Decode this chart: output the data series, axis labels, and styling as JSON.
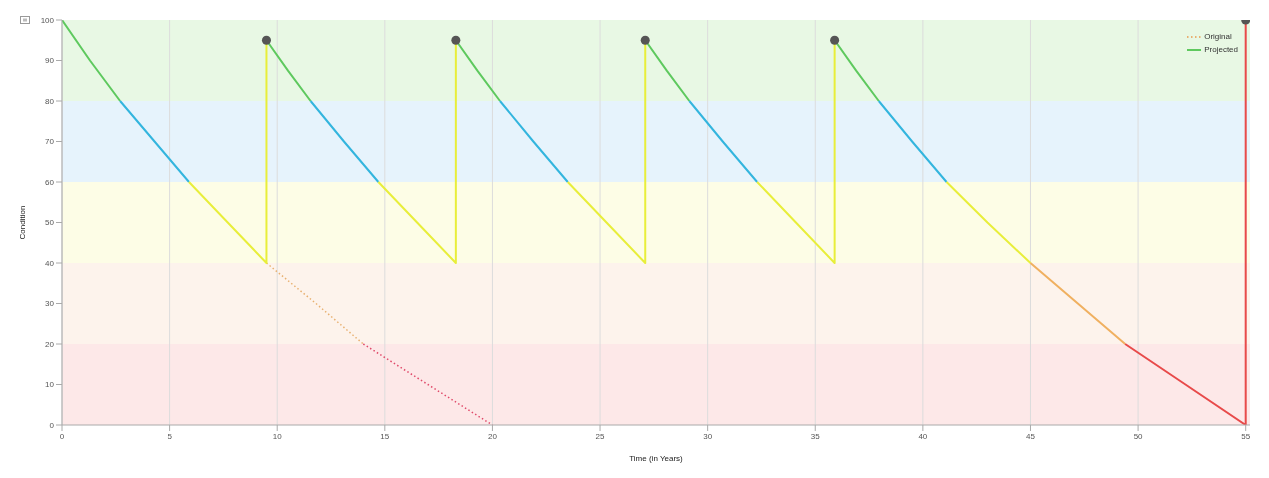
{
  "chart_data": {
    "type": "line",
    "xlabel": "Time (in Years)",
    "ylabel": "Condition",
    "xlim": [
      0,
      55.2
    ],
    "xticks": [
      0,
      5,
      10,
      15,
      20,
      25,
      30,
      35,
      40,
      45,
      50,
      55
    ],
    "ylim": [
      0,
      100
    ],
    "yticks": [
      0,
      10,
      20,
      30,
      40,
      50,
      60,
      70,
      80,
      90,
      100
    ],
    "grid": "x",
    "legend": "top right",
    "marker": "none",
    "bands": [
      {
        "axis": "y",
        "from": 80,
        "to": 100,
        "color": "#e8f8e4"
      },
      {
        "axis": "y",
        "from": 60,
        "to": 80,
        "color": "#e6f3fc"
      },
      {
        "axis": "y",
        "from": 40,
        "to": 60,
        "color": "#fdfde6"
      },
      {
        "axis": "y",
        "from": 20,
        "to": 40,
        "color": "#fdf3ec"
      },
      {
        "axis": "y",
        "from": 0,
        "to": 20,
        "color": "#fde8e8"
      }
    ],
    "series": [
      {
        "name": "Original",
        "color": "#e8b070",
        "line_style": "dotted",
        "x": [
          9.5,
          11.8,
          14.0
        ],
        "values": [
          40,
          30,
          20
        ]
      },
      {
        "color": "#e04a6a",
        "line_style": "dotted",
        "x": [
          14.0,
          17.0,
          20.0
        ],
        "values": [
          20,
          10,
          0
        ]
      },
      {
        "name": "Projected",
        "color": "#5ec95e",
        "line_style": "solid",
        "x": [
          0,
          1.3,
          2.7
        ],
        "values": [
          100,
          90,
          80
        ]
      },
      {
        "color": "#33b5de",
        "line_style": "solid",
        "x": [
          2.7,
          4.3,
          5.9
        ],
        "values": [
          80,
          70,
          60
        ]
      },
      {
        "color": "#e8ee3a",
        "line_style": "solid",
        "x": [
          5.9,
          7.7,
          9.5,
          9.5
        ],
        "values": [
          60,
          50,
          40,
          95
        ]
      },
      {
        "color": "#5ec95e",
        "line_style": "solid",
        "x": [
          9.5,
          10.5,
          11.55
        ],
        "values": [
          95,
          87.5,
          80
        ]
      },
      {
        "color": "#33b5de",
        "line_style": "solid",
        "x": [
          11.55,
          13.1,
          14.7
        ],
        "values": [
          80,
          70,
          60
        ]
      },
      {
        "color": "#e8ee3a",
        "line_style": "solid",
        "x": [
          14.7,
          16.5,
          18.3,
          18.3
        ],
        "values": [
          60,
          50,
          40,
          95
        ]
      },
      {
        "color": "#5ec95e",
        "line_style": "solid",
        "x": [
          18.3,
          19.3,
          20.35
        ],
        "values": [
          95,
          87.5,
          80
        ]
      },
      {
        "color": "#33b5de",
        "line_style": "solid",
        "x": [
          20.35,
          21.9,
          23.5
        ],
        "values": [
          80,
          70,
          60
        ]
      },
      {
        "color": "#e8ee3a",
        "line_style": "solid",
        "x": [
          23.5,
          25.3,
          27.1,
          27.1
        ],
        "values": [
          60,
          50,
          40,
          95
        ]
      },
      {
        "color": "#5ec95e",
        "line_style": "solid",
        "x": [
          27.1,
          28.1,
          29.15
        ],
        "values": [
          95,
          87.5,
          80
        ]
      },
      {
        "color": "#33b5de",
        "line_style": "solid",
        "x": [
          29.15,
          30.7,
          32.3
        ],
        "values": [
          80,
          70,
          60
        ]
      },
      {
        "color": "#e8ee3a",
        "line_style": "solid",
        "x": [
          32.3,
          34.1,
          35.9,
          35.9
        ],
        "values": [
          60,
          50,
          40,
          95
        ]
      },
      {
        "color": "#5ec95e",
        "line_style": "solid",
        "x": [
          35.9,
          36.9,
          37.95
        ],
        "values": [
          95,
          87.5,
          80
        ]
      },
      {
        "color": "#33b5de",
        "line_style": "solid",
        "x": [
          37.95,
          39.5,
          41.1
        ],
        "values": [
          80,
          70,
          60
        ]
      },
      {
        "color": "#e8ee3a",
        "line_style": "solid",
        "x": [
          41.1,
          43.0,
          45.0
        ],
        "values": [
          60,
          50,
          40
        ]
      },
      {
        "color": "#f0b060",
        "line_style": "solid",
        "x": [
          45.0,
          47.2,
          49.4
        ],
        "values": [
          40,
          30,
          20
        ]
      },
      {
        "color": "#e84a4a",
        "line_style": "solid",
        "x": [
          49.4,
          52.2,
          55.0,
          55.0
        ],
        "values": [
          20,
          10,
          0,
          100
        ]
      },
      {
        "type": "scatter",
        "color": "#555555",
        "marker": "circle",
        "x": [
          9.5,
          18.3,
          27.1,
          35.9,
          55.0
        ],
        "values": [
          95,
          95,
          95,
          95,
          100
        ]
      }
    ]
  }
}
